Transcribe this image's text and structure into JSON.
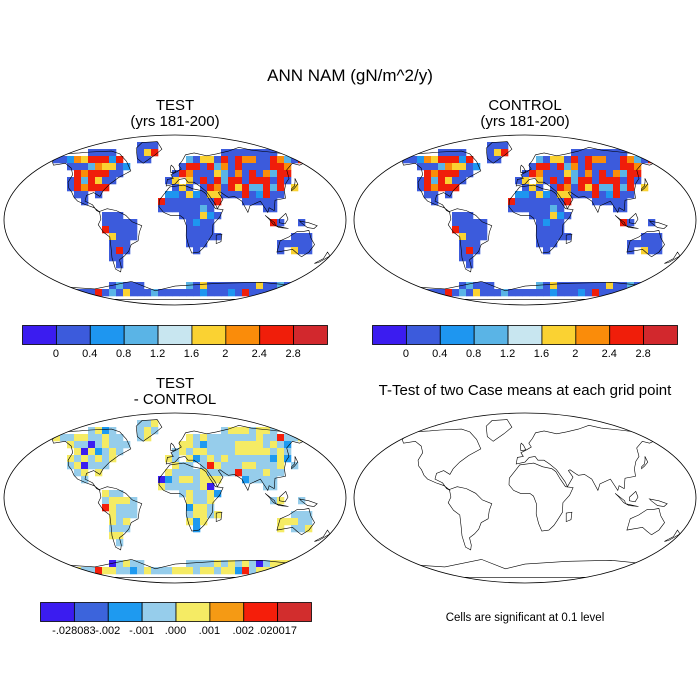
{
  "title": "ANN NAM (gN/m^2/y)",
  "panels": {
    "test": {
      "title": "TEST",
      "subtitle": "(yrs 181-200)"
    },
    "control": {
      "title": "CONTROL",
      "subtitle": "(yrs 181-200)"
    },
    "diff": {
      "title": "TEST",
      "subtitle": "- CONTROL"
    },
    "ttest": {
      "title": "T-Test of two Case means at each grid point",
      "note": "Cells are significant at 0.1 level"
    }
  },
  "colorbars": {
    "main": {
      "colors": [
        "#3b1cf0",
        "#3c5bdc",
        "#1e96f0",
        "#5ab4e6",
        "#c8e6f0",
        "#fad232",
        "#fa8c0a",
        "#f01e0a",
        "#d2282d"
      ],
      "labels": [
        "0",
        "0.4",
        "0.8",
        "1.2",
        "1.6",
        "2",
        "2.4",
        "2.8"
      ]
    },
    "diff": {
      "colors": [
        "#3b1cf0",
        "#3c64dc",
        "#1e9af0",
        "#96cdeb",
        "#f5eb64",
        "#f59a14",
        "#f51e0a",
        "#d22d2d"
      ],
      "labels": [
        "-.028083",
        "-.002",
        "-.001",
        ".000",
        ".001",
        ".002",
        ".020017"
      ]
    }
  }
}
